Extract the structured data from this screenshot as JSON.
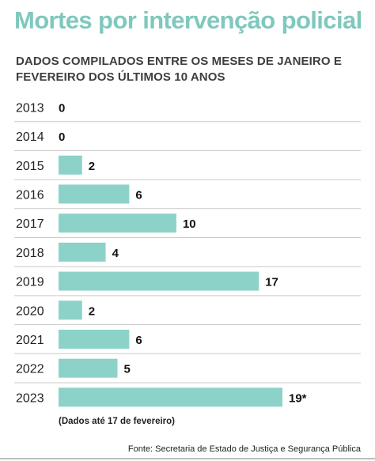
{
  "header": {
    "title": "Mortes por intervenção policial",
    "subtitle": "DADOS COMPILADOS ENTRE OS MESES DE JANEIRO E FEVEREIRO DOS ÚLTIMOS 10 ANOS"
  },
  "chart_data": {
    "type": "bar",
    "orientation": "horizontal",
    "title": "Mortes por intervenção policial",
    "subtitle": "DADOS COMPILADOS ENTRE OS MESES DE JANEIRO E FEVEREIRO DOS ÚLTIMOS 10 ANOS",
    "categories": [
      "2013",
      "2014",
      "2015",
      "2016",
      "2017",
      "2018",
      "2019",
      "2020",
      "2021",
      "2022",
      "2023"
    ],
    "values": [
      0,
      0,
      2,
      6,
      10,
      4,
      17,
      2,
      6,
      5,
      19
    ],
    "value_labels": [
      "0",
      "0",
      "2",
      "6",
      "10",
      "4",
      "17",
      "2",
      "6",
      "5",
      "19*"
    ],
    "bar_color": "#8dd2c8",
    "grid": false,
    "legend": "none"
  },
  "footnote": "(Dados até 17 de fevereiro)",
  "source": "Fonte: Secretaria de Estado de Justiça e Segurança Pública"
}
